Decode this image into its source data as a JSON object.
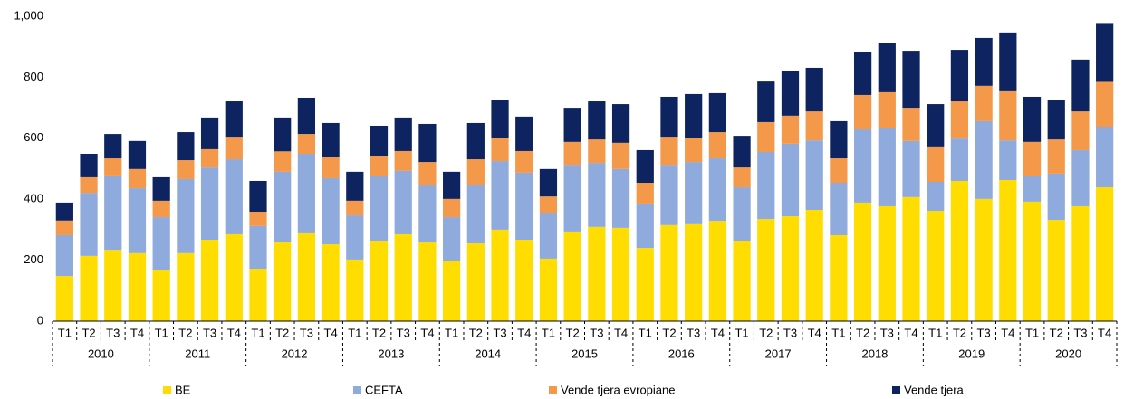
{
  "chart_data": {
    "type": "stacked_bar",
    "categories": [
      "T1",
      "T2",
      "T3",
      "T4",
      "T1",
      "T2",
      "T3",
      "T4",
      "T1",
      "T2",
      "T3",
      "T4",
      "T1",
      "T2",
      "T3",
      "T4",
      "T1",
      "T2",
      "T3",
      "T4",
      "T1",
      "T2",
      "T3",
      "T4",
      "T1",
      "T2",
      "T3",
      "T4",
      "T1",
      "T2",
      "T3",
      "T4",
      "T1",
      "T2",
      "T3",
      "T4",
      "T1",
      "T2",
      "T3",
      "T4",
      "T1",
      "T2",
      "T3",
      "T4"
    ],
    "groups": [
      "2010",
      "2011",
      "2012",
      "2013",
      "2014",
      "2015",
      "2016",
      "2017",
      "2018",
      "2019",
      "2020"
    ],
    "series": [
      {
        "name": "BE",
        "color": "#ffdd00",
        "values": [
          148,
          214,
          234,
          223,
          169,
          223,
          267,
          285,
          172,
          261,
          291,
          252,
          202,
          264,
          285,
          258,
          196,
          255,
          300,
          267,
          205,
          294,
          309,
          306,
          240,
          315,
          318,
          329,
          264,
          335,
          344,
          365,
          282,
          389,
          377,
          407,
          362,
          460,
          401,
          463,
          392,
          332,
          377,
          439
        ]
      },
      {
        "name": "CEFTA",
        "color": "#8faadc",
        "values": [
          134,
          207,
          244,
          213,
          172,
          243,
          237,
          246,
          140,
          229,
          258,
          217,
          145,
          211,
          208,
          187,
          145,
          193,
          225,
          220,
          151,
          219,
          210,
          193,
          146,
          198,
          204,
          205,
          175,
          220,
          238,
          228,
          172,
          240,
          258,
          184,
          95,
          139,
          255,
          130,
          83,
          152,
          184,
          199
        ]
      },
      {
        "name": "Vende tjera evropiane",
        "color": "#f4984a",
        "values": [
          48,
          51,
          56,
          63,
          54,
          62,
          60,
          74,
          47,
          67,
          65,
          71,
          48,
          68,
          65,
          77,
          60,
          83,
          77,
          71,
          53,
          75,
          77,
          86,
          68,
          92,
          80,
          86,
          65,
          98,
          92,
          95,
          80,
          113,
          116,
          109,
          116,
          122,
          116,
          161,
          113,
          112,
          127,
          147
        ]
      },
      {
        "name": "Vende tjera",
        "color": "#0d2460",
        "values": [
          59,
          77,
          80,
          92,
          77,
          92,
          104,
          116,
          101,
          111,
          119,
          110,
          95,
          98,
          110,
          125,
          89,
          119,
          125,
          113,
          90,
          112,
          125,
          127,
          107,
          131,
          143,
          128,
          104,
          133,
          148,
          143,
          122,
          142,
          160,
          187,
          139,
          169,
          157,
          193,
          148,
          128,
          170,
          193
        ]
      }
    ],
    "ylim": [
      0,
      1000
    ],
    "yticks": [
      0,
      200,
      400,
      600,
      800,
      {
        "value": 1000,
        "label": "1,000"
      }
    ],
    "grid": false
  }
}
